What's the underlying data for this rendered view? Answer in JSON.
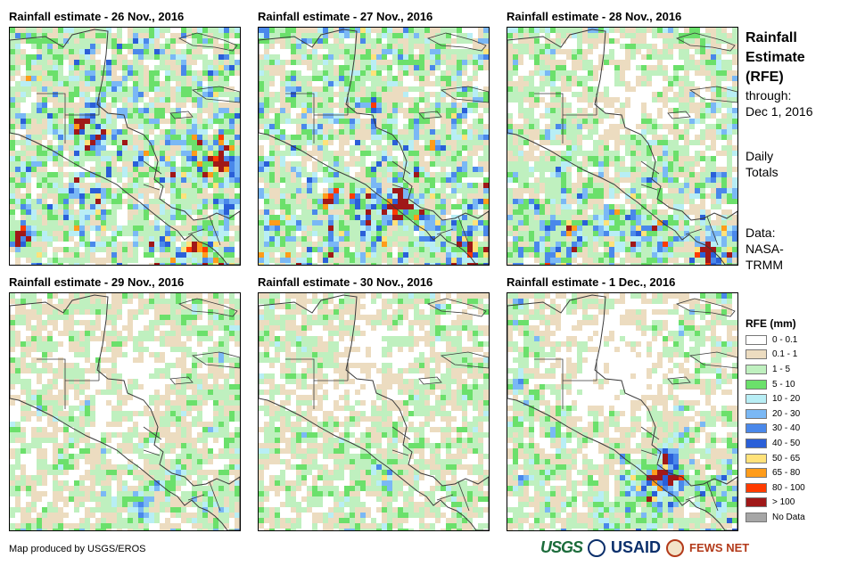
{
  "panels": [
    {
      "title": "Rainfall estimate - 26 Nov., 2016",
      "seed": 11,
      "density": 0.55,
      "intensity": 0.9,
      "zones": "wet_east"
    },
    {
      "title": "Rainfall estimate - 27 Nov., 2016",
      "seed": 23,
      "density": 0.55,
      "intensity": 0.8,
      "zones": "wet_south"
    },
    {
      "title": "Rainfall estimate - 28 Nov., 2016",
      "seed": 37,
      "density": 0.45,
      "intensity": 0.8,
      "zones": "south_band"
    },
    {
      "title": "Rainfall estimate - 29 Nov., 2016",
      "seed": 41,
      "density": 0.35,
      "intensity": 0.5,
      "zones": "south_weak"
    },
    {
      "title": "Rainfall estimate - 30 Nov., 2016",
      "seed": 53,
      "density": 0.35,
      "intensity": 0.6,
      "zones": "center_weak"
    },
    {
      "title": "Rainfall estimate - 1 Dec., 2016",
      "seed": 67,
      "density": 0.4,
      "intensity": 1.0,
      "zones": "south_heavy"
    }
  ],
  "side": {
    "title_lines": [
      "Rainfall",
      "Estimate",
      "(RFE)"
    ],
    "through_label": "through:",
    "through_date": "Dec 1, 2016",
    "totals_lines": [
      "Daily",
      "Totals"
    ],
    "data_lines": [
      "Data:",
      "NASA-",
      "TRMM"
    ]
  },
  "legend": {
    "title": "RFE (mm)",
    "items": [
      {
        "label": "0 - 0.1",
        "color": "#ffffff"
      },
      {
        "label": "0.1 - 1",
        "color": "#ecdcc0"
      },
      {
        "label": "1 - 5",
        "color": "#bff0bf"
      },
      {
        "label": "5 - 10",
        "color": "#6be06b"
      },
      {
        "label": "10 - 20",
        "color": "#b8eef5"
      },
      {
        "label": "20 - 30",
        "color": "#7ab8f5"
      },
      {
        "label": "30 - 40",
        "color": "#4a88ea"
      },
      {
        "label": "40 - 50",
        "color": "#2a5fd8"
      },
      {
        "label": "50 - 65",
        "color": "#ffe27a"
      },
      {
        "label": "65 - 80",
        "color": "#ff9c1a"
      },
      {
        "label": "80 - 100",
        "color": "#ff3b00"
      },
      {
        "label": "> 100",
        "color": "#a01818"
      },
      {
        "label": "No Data",
        "color": "#a6a6a6"
      }
    ]
  },
  "credit": "Map produced by USGS/EROS",
  "logos": {
    "usgs": "USGS",
    "usaid": "USAID",
    "fews": "FEWS NET"
  }
}
